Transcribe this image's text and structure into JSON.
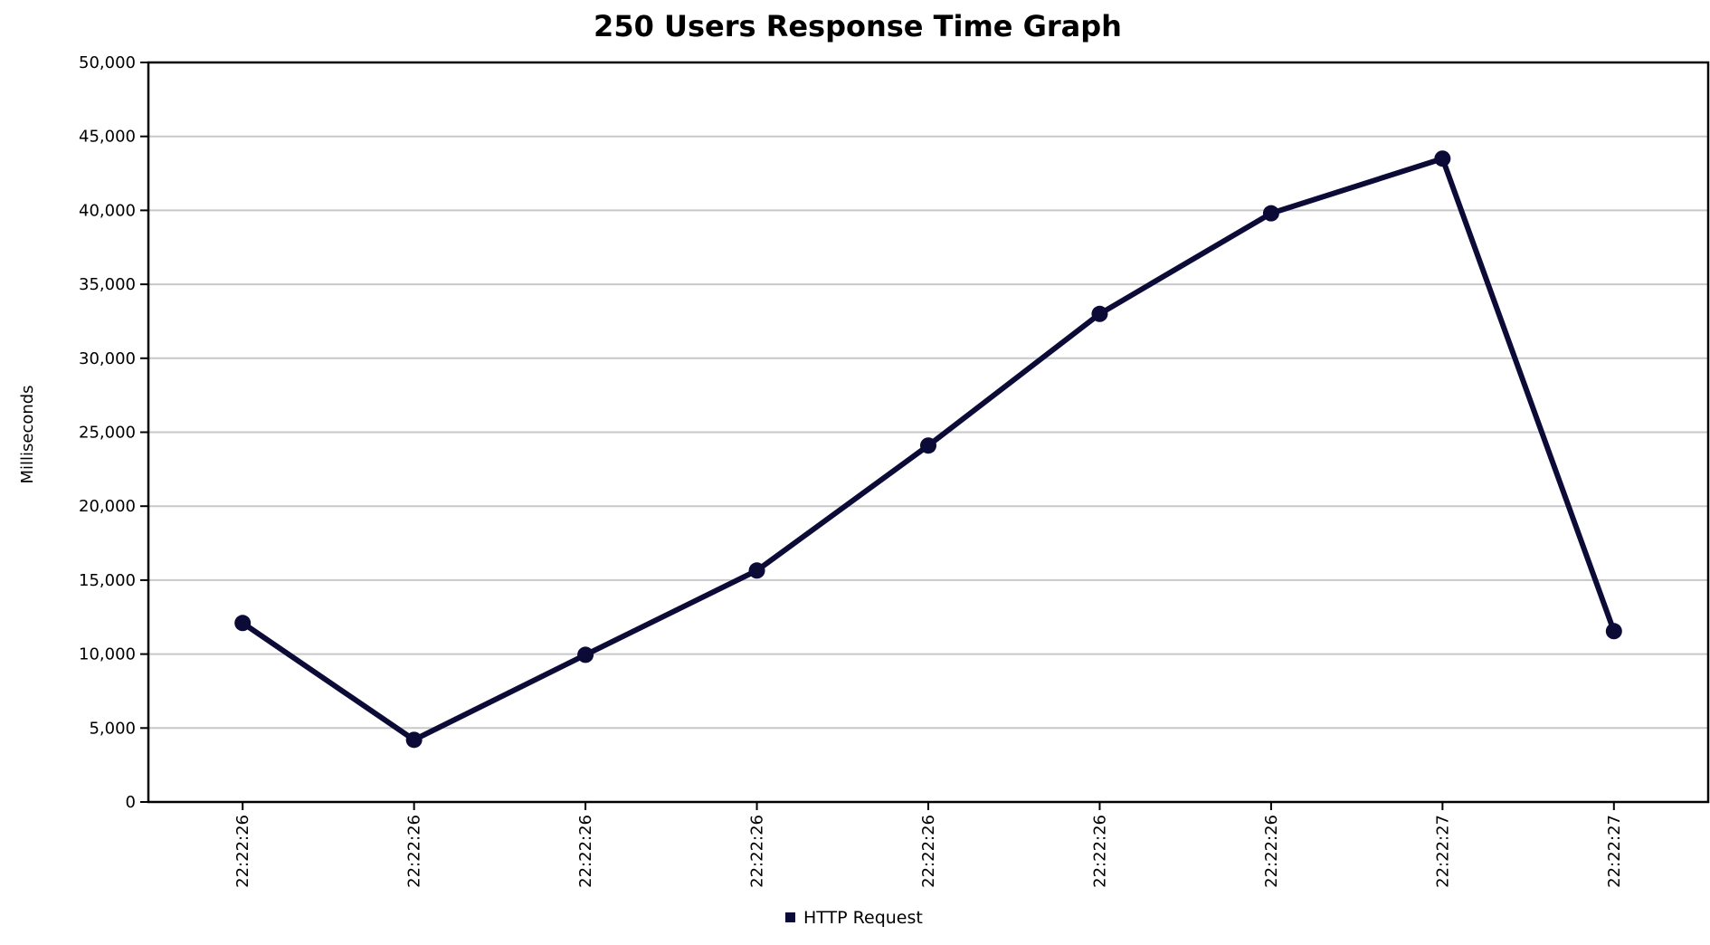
{
  "chart_data": {
    "type": "line",
    "title": "250 Users Response Time Graph",
    "xlabel": "",
    "ylabel": "Milliseconds",
    "categories": [
      "22:22:26",
      "22:22:26",
      "22:22:26",
      "22:22:26",
      "22:22:26",
      "22:22:26",
      "22:22:26",
      "22:22:27",
      "22:22:27"
    ],
    "series": [
      {
        "name": "HTTP Request",
        "color": "#0c0a36",
        "values": [
          12100,
          4200,
          9950,
          15650,
          24100,
          33000,
          39800,
          43500,
          11550
        ]
      }
    ],
    "ylim": [
      0,
      50000
    ],
    "yticks": [
      0,
      5000,
      10000,
      15000,
      20000,
      25000,
      30000,
      35000,
      40000,
      45000,
      50000
    ],
    "ytick_labels": [
      "0",
      "5,000",
      "10,000",
      "15,000",
      "20,000",
      "25,000",
      "30,000",
      "35,000",
      "40,000",
      "45,000",
      "50,000"
    ],
    "grid": true,
    "legend_position": "bottom-center"
  }
}
